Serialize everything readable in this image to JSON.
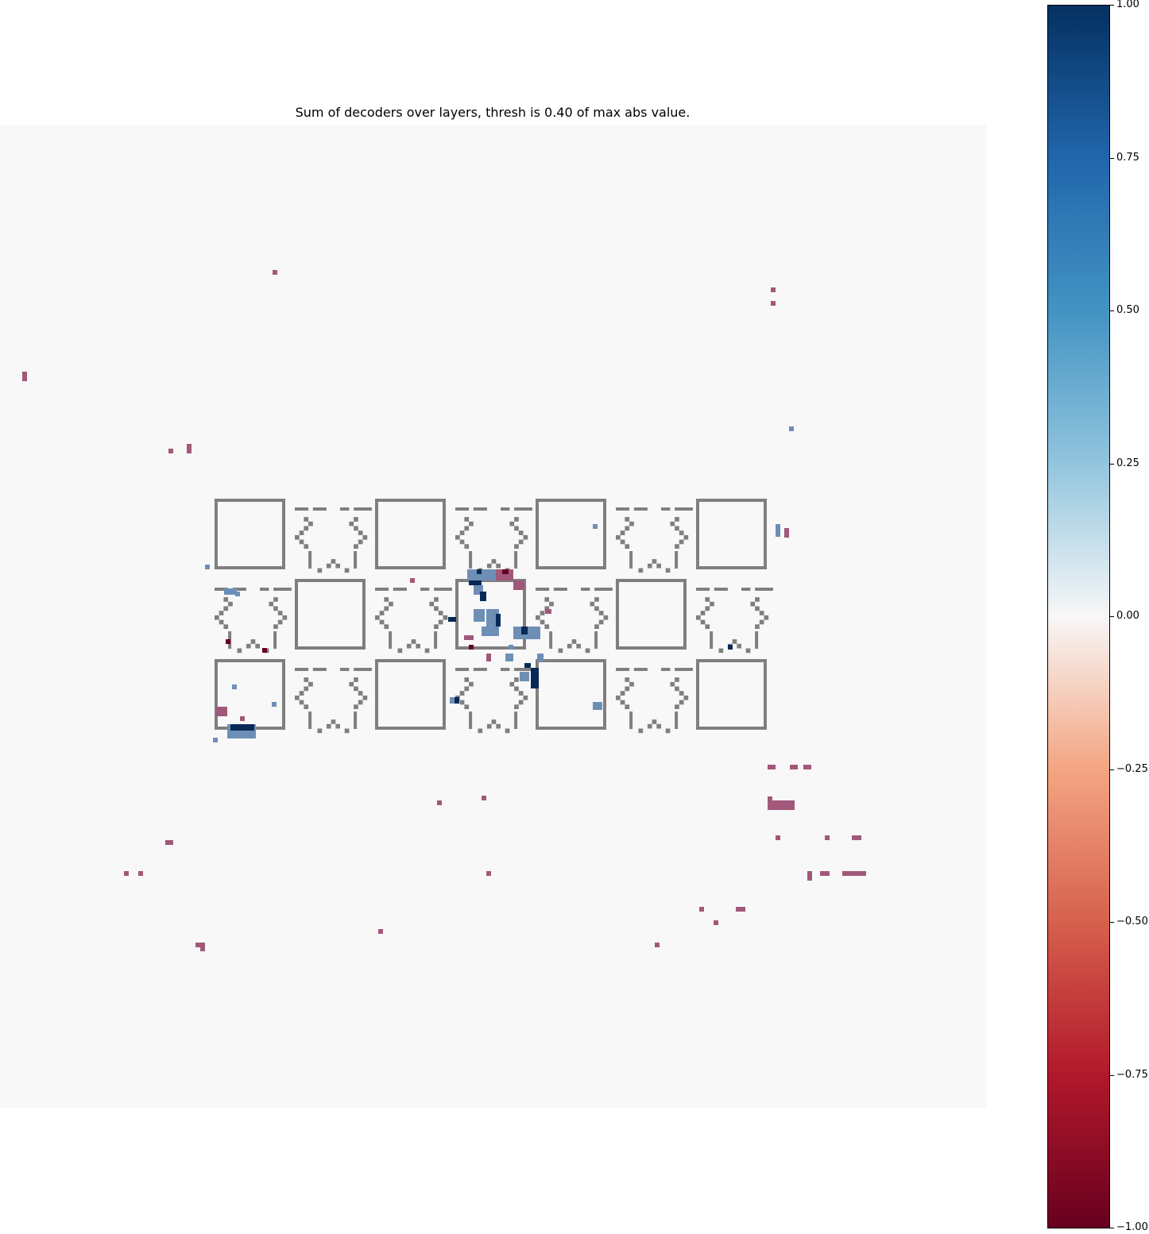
{
  "chart_data": {
    "type": "heatmap",
    "title": "Sum of decoders over layers, thresh is 0.40 of max abs value.",
    "grid": false,
    "colormap": "RdBu",
    "colorbar": {
      "range": [
        -1.0,
        1.0
      ],
      "ticks": [
        "-1.00",
        "-0.75",
        "-0.50",
        "-0.25",
        "0.00",
        "0.25",
        "0.50",
        "0.75",
        "1.00"
      ],
      "position": "right"
    },
    "overlay": {
      "rows": [
        [
          "box",
          "pattern",
          "box",
          "pattern",
          "box",
          "pattern",
          "box"
        ],
        [
          "pattern",
          "box",
          "pattern",
          "box",
          "pattern",
          "box",
          "pattern"
        ],
        [
          "box",
          "pattern",
          "box",
          "pattern",
          "box",
          "pattern",
          "box"
        ]
      ]
    }
  }
}
